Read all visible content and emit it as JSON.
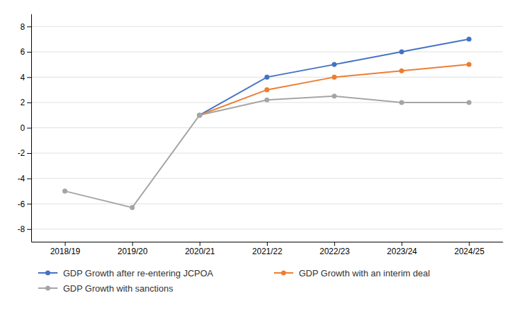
{
  "chart_data": {
    "type": "line",
    "categories": [
      "2018/19",
      "2019/20",
      "2020/21",
      "2021/22",
      "2022/23",
      "2023/24",
      "2024/25"
    ],
    "series": [
      {
        "name": "GDP Growth after re-entering JCPOA",
        "color": "#4472C4",
        "values": [
          null,
          null,
          1.0,
          4.0,
          5.0,
          6.0,
          7.0
        ]
      },
      {
        "name": "GDP Growth with an interim deal",
        "color": "#ED7D31",
        "values": [
          null,
          null,
          1.0,
          3.0,
          4.0,
          4.5,
          5.0
        ]
      },
      {
        "name": "GDP Growth with sanctions",
        "color": "#A5A5A5",
        "values": [
          -5.0,
          -6.3,
          1.0,
          2.2,
          2.5,
          2.0,
          2.0
        ]
      }
    ],
    "ylim": [
      -9,
      9
    ],
    "yticks": [
      -8,
      -6,
      -4,
      -2,
      0,
      2,
      4,
      6,
      8
    ],
    "grid": true,
    "legend": "bottom",
    "marker": "circle"
  }
}
